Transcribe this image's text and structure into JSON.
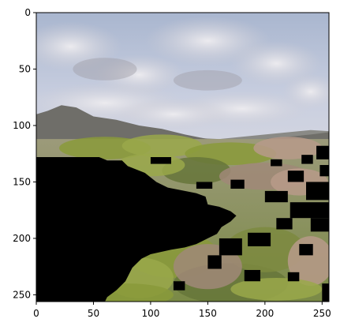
{
  "chart_data": {
    "type": "heatmap",
    "title": "",
    "xlabel": "",
    "ylabel": "",
    "xlim": [
      0,
      256
    ],
    "ylim": [
      256,
      0
    ],
    "y_inverted": true,
    "grid": false,
    "x_ticks": [
      0,
      50,
      100,
      150,
      200,
      250
    ],
    "y_ticks": [
      0,
      50,
      100,
      150,
      200,
      250
    ],
    "x_tick_labels": [
      "0",
      "50",
      "100",
      "150",
      "200",
      "250"
    ],
    "y_tick_labels": [
      "0",
      "50",
      "100",
      "150",
      "200",
      "250"
    ],
    "image": {
      "width": 256,
      "height": 256,
      "description_content": "landscape photo with masked black regions",
      "colors": {
        "sky_top": "#8fa7c9",
        "sky_mid": "#c7cde0",
        "cloud": "#e6e4e9",
        "cloud_shadow": "#a6a3aa",
        "mountain": "#6e6d68",
        "mountain_far": "#8b8a84",
        "vegetation": "#8a9a3a",
        "vegetation_dark": "#66753a",
        "rock": "#b79a8a",
        "mask": "#000000"
      }
    }
  }
}
